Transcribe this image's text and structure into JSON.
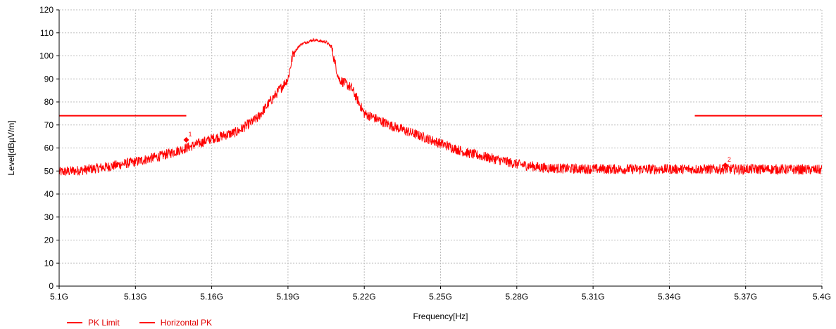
{
  "chart_data": {
    "type": "line",
    "xlabel": "Frequency[Hz]",
    "ylabel": "Level[dBµV/m]",
    "xlim": [
      5.1,
      5.4
    ],
    "ylim": [
      0,
      120
    ],
    "x_ticks": [
      "5.1G",
      "5.13G",
      "5.16G",
      "5.19G",
      "5.22G",
      "5.25G",
      "5.28G",
      "5.31G",
      "5.34G",
      "5.37G",
      "5.4G"
    ],
    "y_ticks": [
      "0",
      "10",
      "20",
      "30",
      "40",
      "50",
      "60",
      "70",
      "80",
      "90",
      "100",
      "110",
      "120"
    ],
    "grid": true,
    "legend_position": "bottom-left",
    "colors": {
      "series": "#ff0000",
      "grid": "#bdbdbd",
      "axis": "#000000"
    },
    "series": [
      {
        "name": "PK Limit",
        "segments": [
          {
            "x": [
              5.1,
              5.15
            ],
            "y": [
              74,
              74
            ]
          },
          {
            "x": [
              5.35,
              5.4
            ],
            "y": [
              74,
              74
            ]
          }
        ]
      },
      {
        "name": "Horizontal PK",
        "x": [
          5.1,
          5.11,
          5.12,
          5.13,
          5.14,
          5.15,
          5.16,
          5.17,
          5.178,
          5.185,
          5.19,
          5.192,
          5.195,
          5.2,
          5.205,
          5.207,
          5.21,
          5.215,
          5.22,
          5.23,
          5.24,
          5.25,
          5.26,
          5.27,
          5.28,
          5.29,
          5.3,
          5.32,
          5.34,
          5.36,
          5.38,
          5.4
        ],
        "y": [
          49.5,
          50.5,
          52,
          54,
          56.5,
          60,
          64,
          67,
          73,
          83,
          90,
          101,
          105,
          107,
          106,
          104,
          90,
          86,
          75,
          70,
          66,
          62,
          58,
          55.5,
          53,
          51.5,
          51,
          50.8,
          50.8,
          50.8,
          50.8,
          50.5
        ]
      }
    ],
    "markers": [
      {
        "label": "1",
        "x": 5.15,
        "y": 63.5
      },
      {
        "label": "2",
        "x": 5.362,
        "y": 52.5
      }
    ]
  }
}
